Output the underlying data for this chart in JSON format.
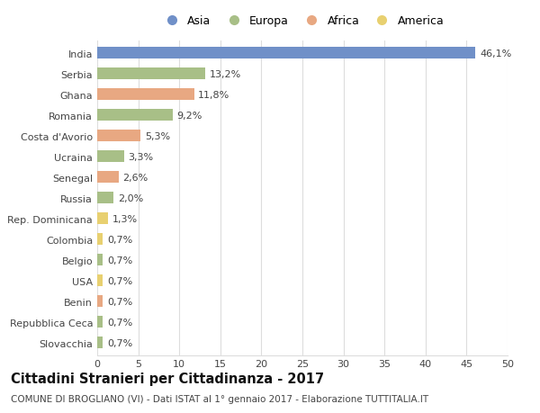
{
  "categories": [
    "India",
    "Serbia",
    "Ghana",
    "Romania",
    "Costa d'Avorio",
    "Ucraina",
    "Senegal",
    "Russia",
    "Rep. Dominicana",
    "Colombia",
    "Belgio",
    "USA",
    "Benin",
    "Repubblica Ceca",
    "Slovacchia"
  ],
  "values": [
    46.1,
    13.2,
    11.8,
    9.2,
    5.3,
    3.3,
    2.6,
    2.0,
    1.3,
    0.7,
    0.7,
    0.7,
    0.7,
    0.7,
    0.7
  ],
  "labels": [
    "46,1%",
    "13,2%",
    "11,8%",
    "9,2%",
    "5,3%",
    "3,3%",
    "2,6%",
    "2,0%",
    "1,3%",
    "0,7%",
    "0,7%",
    "0,7%",
    "0,7%",
    "0,7%",
    "0,7%"
  ],
  "continents": [
    "Asia",
    "Europa",
    "Africa",
    "Europa",
    "Africa",
    "Europa",
    "Africa",
    "Europa",
    "America",
    "America",
    "Europa",
    "America",
    "Africa",
    "Europa",
    "Europa"
  ],
  "colors": {
    "Asia": "#7090c8",
    "Europa": "#a8bf87",
    "Africa": "#e8a882",
    "America": "#e8d070"
  },
  "legend_order": [
    "Asia",
    "Europa",
    "Africa",
    "America"
  ],
  "xlim": [
    0,
    50
  ],
  "xticks": [
    0,
    5,
    10,
    15,
    20,
    25,
    30,
    35,
    40,
    45,
    50
  ],
  "title": "Cittadini Stranieri per Cittadinanza - 2017",
  "subtitle": "COMUNE DI BROGLIANO (VI) - Dati ISTAT al 1° gennaio 2017 - Elaborazione TUTTITALIA.IT",
  "bg_color": "#ffffff",
  "grid_color": "#dddddd",
  "bar_height": 0.55,
  "label_fontsize": 8.0,
  "tick_fontsize": 8.0,
  "title_fontsize": 10.5,
  "subtitle_fontsize": 7.5
}
